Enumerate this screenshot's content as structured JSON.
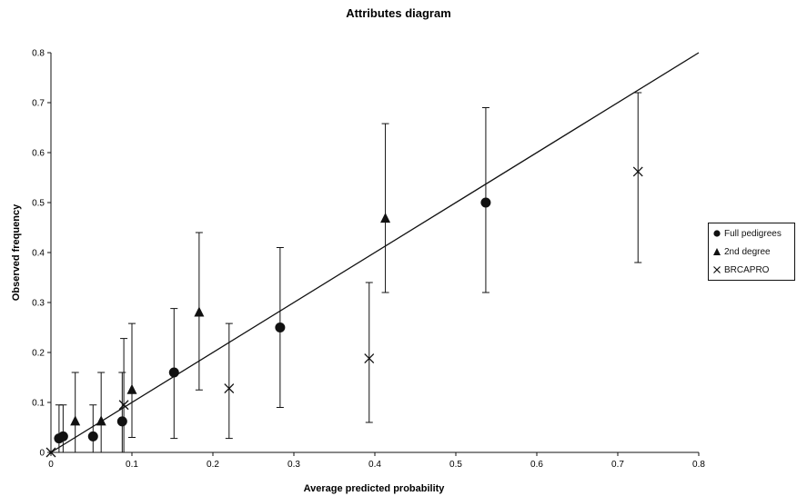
{
  "chart_data": {
    "type": "scatter",
    "title": "Attributes diagram",
    "xlabel": "Average predicted probability",
    "ylabel": "Observed frequency",
    "xlim": [
      0,
      0.8
    ],
    "ylim": [
      0,
      0.8
    ],
    "x_ticks": [
      "0",
      "0.1",
      "0.2",
      "0.3",
      "0.4",
      "0.5",
      "0.6",
      "0.7",
      "0.8"
    ],
    "y_ticks": [
      "0",
      "0.1",
      "0.2",
      "0.3",
      "0.4",
      "0.5",
      "0.6",
      "0.7",
      "0.8"
    ],
    "grid": false,
    "legend_position": "right",
    "reference_line": {
      "from": [
        0,
        0
      ],
      "to": [
        0.8,
        0.8
      ]
    },
    "series": [
      {
        "name": "Full pedigrees",
        "marker": "circle",
        "points": [
          {
            "x": 0.01,
            "y": 0.028,
            "low": 0.0,
            "high": 0.095
          },
          {
            "x": 0.015,
            "y": 0.032,
            "low": 0.0,
            "high": 0.095
          },
          {
            "x": 0.052,
            "y": 0.032,
            "low": 0.0,
            "high": 0.095
          },
          {
            "x": 0.088,
            "y": 0.062,
            "low": 0.0,
            "high": 0.16
          },
          {
            "x": 0.152,
            "y": 0.16,
            "low": 0.028,
            "high": 0.288
          },
          {
            "x": 0.283,
            "y": 0.25,
            "low": 0.09,
            "high": 0.41
          },
          {
            "x": 0.537,
            "y": 0.5,
            "low": 0.32,
            "high": 0.69
          }
        ]
      },
      {
        "name": "2nd degree",
        "marker": "triangle",
        "points": [
          {
            "x": 0.03,
            "y": 0.062,
            "low": 0.0,
            "high": 0.16
          },
          {
            "x": 0.062,
            "y": 0.062,
            "low": 0.0,
            "high": 0.16
          },
          {
            "x": 0.1,
            "y": 0.125,
            "low": 0.03,
            "high": 0.258
          },
          {
            "x": 0.183,
            "y": 0.28,
            "low": 0.125,
            "high": 0.44
          },
          {
            "x": 0.413,
            "y": 0.468,
            "low": 0.32,
            "high": 0.658
          }
        ]
      },
      {
        "name": "BRCAPRO",
        "marker": "cross",
        "points": [
          {
            "x": 0.0,
            "y": 0.0,
            "low": 0.0,
            "high": 0.0
          },
          {
            "x": 0.09,
            "y": 0.095,
            "low": 0.0,
            "high": 0.228
          },
          {
            "x": 0.22,
            "y": 0.128,
            "low": 0.028,
            "high": 0.258
          },
          {
            "x": 0.393,
            "y": 0.188,
            "low": 0.06,
            "high": 0.34
          },
          {
            "x": 0.725,
            "y": 0.562,
            "low": 0.38,
            "high": 0.72
          }
        ]
      }
    ]
  }
}
